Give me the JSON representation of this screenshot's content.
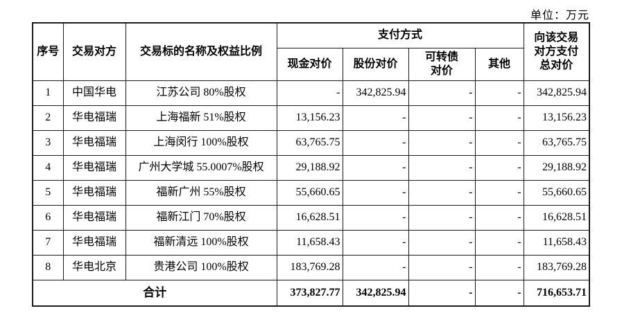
{
  "unit_label": "单位：万元",
  "colors": {
    "background": "#ffffff",
    "border": "#1a1a1a",
    "text": "#000000"
  },
  "table": {
    "header": {
      "seq": "序号",
      "counterparty": "交易对方",
      "target": "交易标的名称及权益比例",
      "payment_method": "支付方式",
      "cash": "现金对价",
      "shares": "股份对价",
      "convertible": "可转债\n对价",
      "other": "其他",
      "total": "向该交易\n对方支付\n总对价"
    },
    "rows": [
      {
        "seq": "1",
        "counterparty": "中国华电",
        "target": "江苏公司 80%股权",
        "cash": "-",
        "shares": "342,825.94",
        "convertible": "-",
        "other": "-",
        "total": "342,825.94"
      },
      {
        "seq": "2",
        "counterparty": "华电福瑞",
        "target": "上海福新 51%股权",
        "cash": "13,156.23",
        "shares": "-",
        "convertible": "-",
        "other": "-",
        "total": "13,156.23"
      },
      {
        "seq": "3",
        "counterparty": "华电福瑞",
        "target": "上海闵行 100%股权",
        "cash": "63,765.75",
        "shares": "-",
        "convertible": "-",
        "other": "-",
        "total": "63,765.75"
      },
      {
        "seq": "4",
        "counterparty": "华电福瑞",
        "target": "广州大学城 55.0007%股权",
        "cash": "29,188.92",
        "shares": "-",
        "convertible": "-",
        "other": "-",
        "total": "29,188.92"
      },
      {
        "seq": "5",
        "counterparty": "华电福瑞",
        "target": "福新广州 55%股权",
        "cash": "55,660.65",
        "shares": "-",
        "convertible": "-",
        "other": "-",
        "total": "55,660.65"
      },
      {
        "seq": "6",
        "counterparty": "华电福瑞",
        "target": "福新江门 70%股权",
        "cash": "16,628.51",
        "shares": "-",
        "convertible": "-",
        "other": "-",
        "total": "16,628.51"
      },
      {
        "seq": "7",
        "counterparty": "华电福瑞",
        "target": "福新清远 100%股权",
        "cash": "11,658.43",
        "shares": "-",
        "convertible": "-",
        "other": "-",
        "total": "11,658.43"
      },
      {
        "seq": "8",
        "counterparty": "华电北京",
        "target": "贵港公司 100%股权",
        "cash": "183,769.28",
        "shares": "-",
        "convertible": "-",
        "other": "-",
        "total": "183,769.28"
      }
    ],
    "total_row": {
      "label": "合计",
      "cash": "373,827.77",
      "shares": "342,825.94",
      "convertible": "-",
      "other": "-",
      "total": "716,653.71"
    }
  }
}
